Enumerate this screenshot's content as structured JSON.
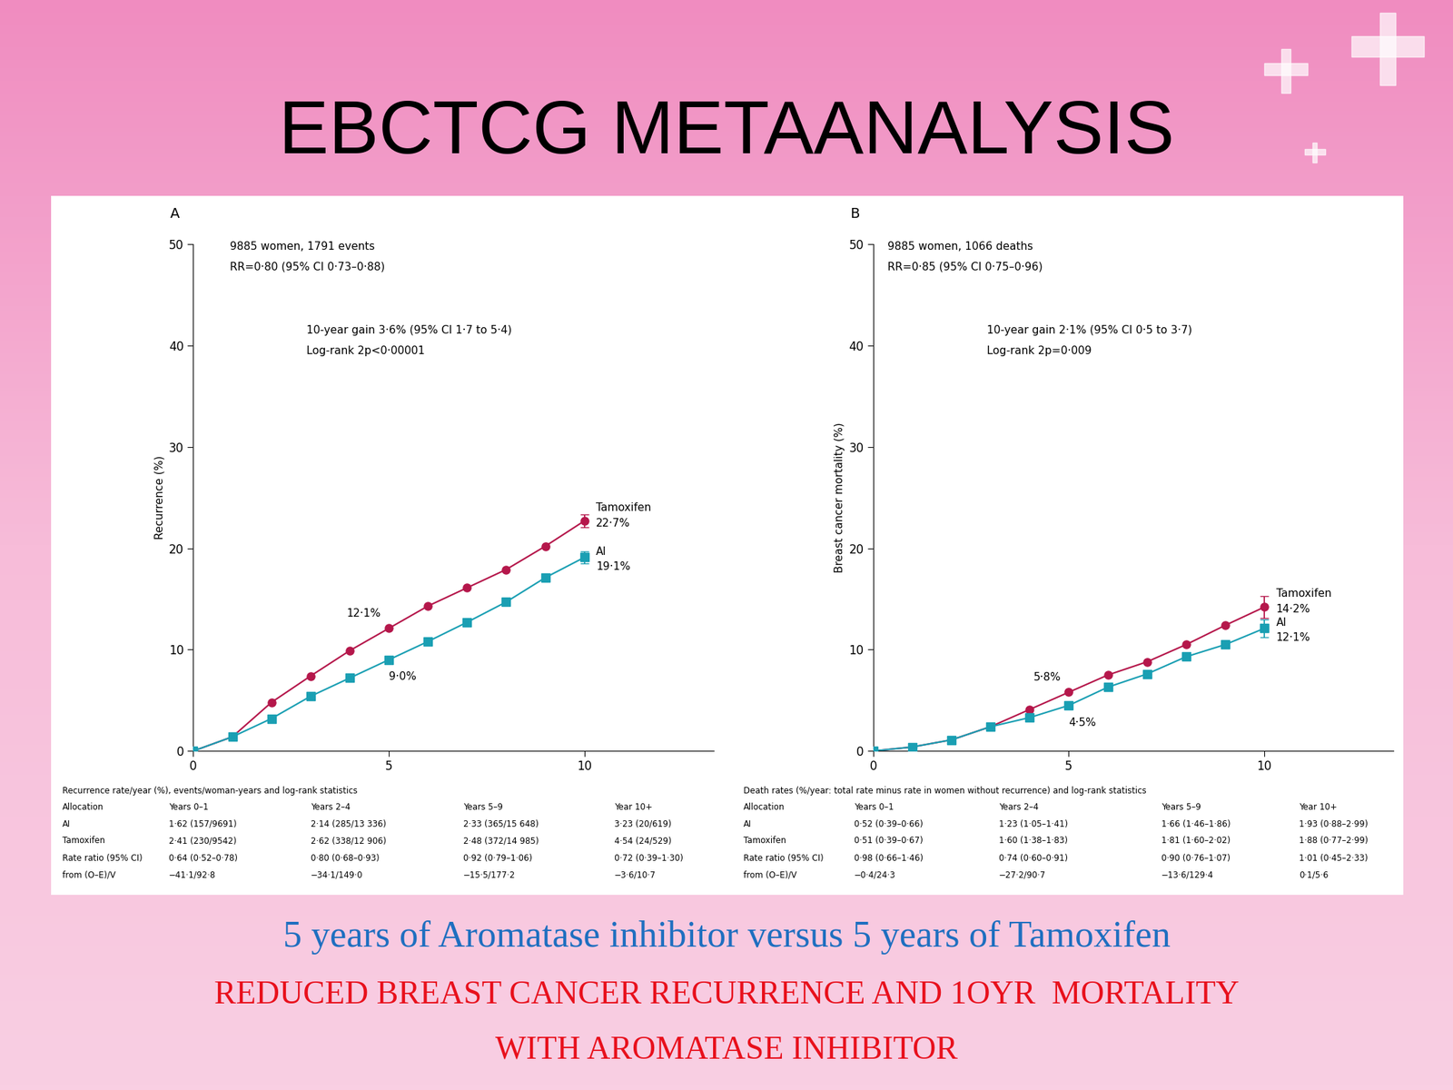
{
  "title": "EBCTCG METAANALYSIS",
  "footer": {
    "subtitle": "5 years of Aromatase inhibitor versus 5 years of Tamoxifen",
    "conclusion": [
      "REDUCED BREAST CANCER RECURRENCE AND 1OYR  MORTALITY",
      "WITH AROMATASE INHIBITOR"
    ]
  },
  "chart_data": [
    {
      "type": "line",
      "panel": "A",
      "ylabel": "Recurrence (%)",
      "x": [
        0,
        1,
        2,
        3,
        4,
        5,
        6,
        7,
        8,
        9,
        10
      ],
      "xlim": [
        0,
        13.3
      ],
      "xticks": [
        0,
        5,
        10
      ],
      "ylim": [
        0,
        50
      ],
      "yticks": [
        0,
        10,
        20,
        30,
        40,
        50
      ],
      "grid": false,
      "annotations": [
        "9885 women, 1791 events",
        "RR=0·80 (95% CI 0·73–0·88)",
        "10-year gain 3·6% (95% CI 1·7 to 5·4)",
        "Log-rank 2p<0·00001"
      ],
      "series": [
        {
          "name": "Tamoxifen",
          "color": "#b5174b",
          "marker": "o",
          "values": [
            0,
            1.4,
            4.8,
            7.4,
            9.9,
            12.1,
            14.3,
            16.1,
            17.9,
            20.2,
            22.7
          ],
          "errors": [
            null,
            null,
            null,
            null,
            null,
            null,
            null,
            null,
            null,
            null,
            0.6
          ],
          "point_labels": [
            {
              "x": 5,
              "label": "12·1%"
            },
            {
              "x": 10,
              "label": "22·7%"
            }
          ]
        },
        {
          "name": "AI",
          "color": "#1a9fb3",
          "marker": "s",
          "values": [
            0,
            1.4,
            3.2,
            5.4,
            7.2,
            9.0,
            10.8,
            12.7,
            14.7,
            17.1,
            19.1
          ],
          "errors": [
            null,
            null,
            null,
            null,
            null,
            null,
            null,
            null,
            null,
            null,
            0.6
          ],
          "point_labels": [
            {
              "x": 5,
              "label": "9·0%"
            },
            {
              "x": 10,
              "label": "19·1%"
            }
          ]
        }
      ],
      "table": {
        "caption": "Recurrence rate/year (%), events/woman-years and log-rank statistics",
        "header": [
          "Allocation",
          "Years 0–1",
          "Years 2–4",
          "Years 5–9",
          "Year 10+"
        ],
        "rows": [
          [
            "AI",
            "1·62 (157/9691)",
            "2·14 (285/13 336)",
            "2·33 (365/15 648)",
            "3·23 (20/619)"
          ],
          [
            "Tamoxifen",
            "2·41 (230/9542)",
            "2·62 (338/12 906)",
            "2·48 (372/14 985)",
            "4·54 (24/529)"
          ],
          [
            "Rate ratio (95% CI)",
            "0·64 (0·52–0·78)",
            "0·80 (0·68–0·93)",
            "0·92 (0·79–1·06)",
            "0·72 (0·39–1·30)"
          ],
          [
            "from (O–E)/V",
            "−41·1/92·8",
            "−34·1/149·0",
            "−15·5/177·2",
            "−3·6/10·7"
          ]
        ]
      }
    },
    {
      "type": "line",
      "panel": "B",
      "ylabel": "Breast cancer mortality (%)",
      "x": [
        0,
        1,
        2,
        3,
        4,
        5,
        6,
        7,
        8,
        9,
        10
      ],
      "xlim": [
        0,
        13.3
      ],
      "xticks": [
        0,
        5,
        10
      ],
      "ylim": [
        0,
        50
      ],
      "yticks": [
        0,
        10,
        20,
        30,
        40,
        50
      ],
      "grid": false,
      "annotations": [
        "9885 women, 1066 deaths",
        "RR=0·85 (95% CI 0·75–0·96)",
        "10-year gain 2·1% (95% CI 0·5 to 3·7)",
        "Log-rank 2p=0·009"
      ],
      "series": [
        {
          "name": "Tamoxifen",
          "color": "#b5174b",
          "marker": "o",
          "values": [
            0,
            0.4,
            1.1,
            2.4,
            4.1,
            5.8,
            7.5,
            8.8,
            10.5,
            12.4,
            14.2
          ],
          "errors": [
            null,
            null,
            null,
            null,
            null,
            null,
            null,
            null,
            null,
            null,
            1.1
          ],
          "point_labels": [
            {
              "x": 5,
              "label": "5·8%"
            },
            {
              "x": 10,
              "label": "14·2%"
            }
          ]
        },
        {
          "name": "AI",
          "color": "#1a9fb3",
          "marker": "s",
          "values": [
            0,
            0.4,
            1.1,
            2.4,
            3.3,
            4.5,
            6.3,
            7.6,
            9.3,
            10.5,
            12.1
          ],
          "errors": [
            null,
            null,
            null,
            null,
            null,
            null,
            null,
            null,
            null,
            null,
            0.9
          ],
          "point_labels": [
            {
              "x": 5,
              "label": "4·5%"
            },
            {
              "x": 10,
              "label": "12·1%"
            }
          ]
        }
      ],
      "table": {
        "caption": "Death rates (%/year: total rate minus rate in women without recurrence) and log-rank statistics",
        "header": [
          "Allocation",
          "Years 0–1",
          "Years 2–4",
          "Years 5–9",
          "Year 10+"
        ],
        "rows": [
          [
            "AI",
            "0·52 (0·39–0·66)",
            "1·23 (1·05–1·41)",
            "1·66 (1·46–1·86)",
            "1·93 (0·88–2·99)"
          ],
          [
            "Tamoxifen",
            "0·51 (0·39–0·67)",
            "1·60 (1·38–1·83)",
            "1·81 (1·60–2·02)",
            "1·88 (0·77–2·99)"
          ],
          [
            "Rate ratio (95% CI)",
            "0·98 (0·66–1·46)",
            "0·74 (0·60–0·91)",
            "0·90 (0·76–1·07)",
            "1·01 (0·45–2·33)"
          ],
          [
            "from (O–E)/V",
            "−0·4/24·3",
            "−27·2/90·7",
            "−13·6/129·4",
            "0·1/5·6"
          ]
        ]
      }
    }
  ]
}
